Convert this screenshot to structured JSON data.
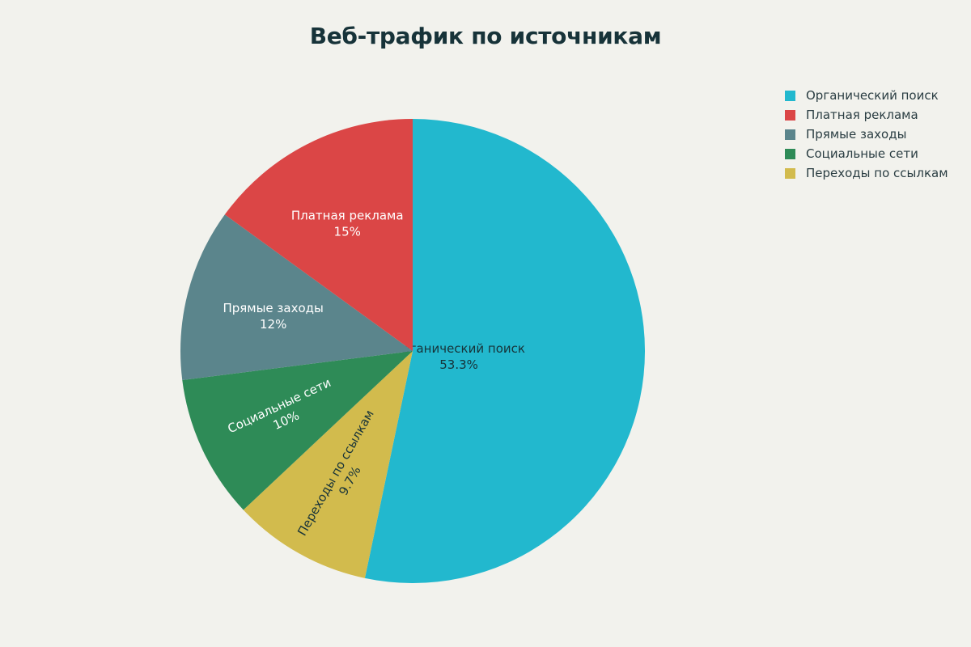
{
  "chart_data": {
    "type": "pie",
    "title": "Веб-трафик по источникам",
    "slices": [
      {
        "label": "Органический поиск",
        "value": 53.3,
        "display": "53.3%",
        "color": "#22b8ce",
        "text_color": "#173339"
      },
      {
        "label": "Переходы по ссылкам",
        "value": 9.7,
        "display": "9.7%",
        "color": "#d2bb4d",
        "text_color": "#173339"
      },
      {
        "label": "Социальные сети",
        "value": 10,
        "display": "10%",
        "color": "#2e8b57",
        "text_color": "#ffffff"
      },
      {
        "label": "Прямые заходы",
        "value": 12,
        "display": "12%",
        "color": "#5b858c",
        "text_color": "#ffffff"
      },
      {
        "label": "Платная реклама",
        "value": 15,
        "display": "15%",
        "color": "#db4646",
        "text_color": "#ffffff"
      }
    ],
    "legend": {
      "position": "top-right",
      "entries": [
        "Органический поиск",
        "Платная реклама",
        "Прямые заходы",
        "Социальные сети",
        "Переходы по ссылкам"
      ]
    }
  }
}
